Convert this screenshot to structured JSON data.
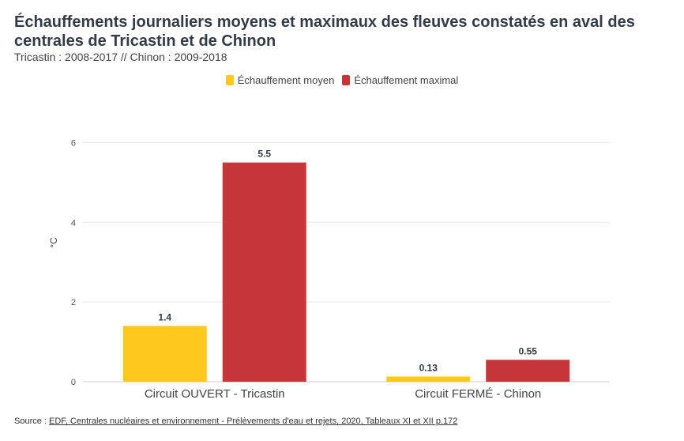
{
  "header": {
    "title": "Échauffements journaliers moyens et maximaux des fleuves constatés en aval des centrales de Tricastin et de Chinon",
    "subtitle": "Tricastin : 2008-2017 // Chinon : 2009-2018"
  },
  "chart_data": {
    "type": "bar",
    "categories": [
      "Circuit OUVERT - Tricastin",
      "Circuit FERMÉ - Chinon"
    ],
    "series": [
      {
        "name": "Échauffement moyen",
        "color": "#fdc91d",
        "values": [
          1.4,
          0.13
        ],
        "labels": [
          "1.4",
          "0.13"
        ]
      },
      {
        "name": "Échauffement maximal",
        "color": "#c63537",
        "values": [
          5.5,
          0.55
        ],
        "labels": [
          "5.5",
          "0.55"
        ]
      }
    ],
    "ylabel": "°C",
    "ylim": [
      0,
      7
    ],
    "yticks": [
      0,
      2,
      4,
      6
    ],
    "grid": true,
    "legend_position": "top-center"
  },
  "footer": {
    "source_prefix": "Source : ",
    "source_link": "EDF, Centrales nucléaires et environnement - Prélèvements d'eau et rejets, 2020, Tableaux XI et XII p.172"
  }
}
